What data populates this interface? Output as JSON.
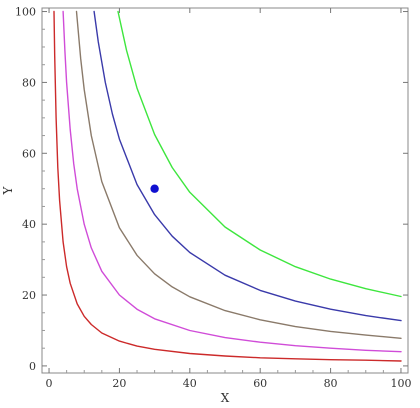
{
  "chart_data": {
    "type": "line",
    "title": "",
    "xlabel": "X",
    "ylabel": "Y",
    "xlim": [
      -2,
      102
    ],
    "ylim": [
      -2,
      101
    ],
    "xticks": [
      0,
      20,
      40,
      60,
      80,
      100
    ],
    "yticks": [
      0,
      20,
      40,
      60,
      80,
      100
    ],
    "grid": false,
    "legend": "none",
    "series": [
      {
        "color": "#cc2a2a",
        "x": [
          1.4,
          1.6,
          2,
          2.5,
          3,
          4,
          5,
          6,
          8,
          10,
          12,
          15,
          20,
          25,
          30,
          40,
          50,
          60,
          70,
          80,
          90,
          100
        ],
        "y": [
          100,
          87.5,
          70,
          56,
          46.7,
          35,
          28,
          23.3,
          17.5,
          14,
          11.7,
          9.3,
          7,
          5.6,
          4.7,
          3.5,
          2.8,
          2.3,
          2,
          1.75,
          1.6,
          1.4
        ]
      },
      {
        "color": "#d04cd8",
        "x": [
          4,
          4.5,
          5,
          6,
          7,
          8,
          10,
          12,
          15,
          20,
          25,
          30,
          40,
          50,
          60,
          70,
          80,
          90,
          100
        ],
        "y": [
          100,
          88.9,
          80,
          66.7,
          57.1,
          50,
          40,
          33.3,
          26.7,
          20,
          16,
          13.3,
          10,
          8,
          6.7,
          5.7,
          5,
          4.4,
          4
        ]
      },
      {
        "color": "#8a7a6a",
        "x": [
          7.8,
          9,
          10,
          12,
          15,
          20,
          25,
          30,
          35,
          40,
          50,
          60,
          70,
          80,
          90,
          100
        ],
        "y": [
          100,
          86.7,
          78,
          65,
          52,
          39,
          31.2,
          26,
          22.3,
          19.5,
          15.6,
          13,
          11.1,
          9.75,
          8.7,
          7.8
        ]
      },
      {
        "color": "#3a3aaa",
        "x": [
          12.8,
          14,
          16,
          18,
          20,
          25,
          30,
          35,
          40,
          50,
          60,
          70,
          80,
          90,
          100
        ],
        "y": [
          100,
          91.4,
          80,
          71.1,
          64,
          51.2,
          42.7,
          36.6,
          32,
          25.6,
          21.3,
          18.3,
          16,
          14.2,
          12.8
        ]
      },
      {
        "color": "#3ee63e",
        "x": [
          19.6,
          22,
          25,
          30,
          35,
          40,
          50,
          60,
          70,
          80,
          90,
          100
        ],
        "y": [
          100,
          89.1,
          78.4,
          65.3,
          56,
          49,
          39.2,
          32.7,
          28,
          24.5,
          21.8,
          19.6
        ]
      }
    ],
    "points": [
      {
        "x": 30,
        "y": 50,
        "color": "#1010d0"
      }
    ]
  }
}
